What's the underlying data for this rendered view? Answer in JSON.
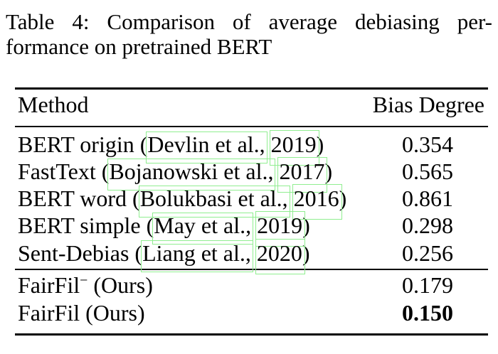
{
  "caption": {
    "line1": "Table 4:  Comparison of average debiasing per-",
    "line2": "formance on pretrained BERT"
  },
  "table": {
    "columns": [
      "Method",
      "Bias Degree"
    ],
    "groups": [
      {
        "name": "baselines",
        "rows": [
          {
            "method_parts": [
              {
                "text": "BERT origin ("
              },
              {
                "text": "Devlin et al.,",
                "box": "author"
              },
              {
                "text": " "
              },
              {
                "text": "2019",
                "box": "year"
              },
              {
                "text": ")"
              }
            ],
            "value": "0.354",
            "bold": false
          },
          {
            "method_parts": [
              {
                "text": "FastText ("
              },
              {
                "text": "Bojanowski et al.,",
                "box": "author"
              },
              {
                "text": " "
              },
              {
                "text": "2017",
                "box": "year"
              },
              {
                "text": ")"
              }
            ],
            "value": "0.565",
            "bold": false
          },
          {
            "method_parts": [
              {
                "text": "BERT word ("
              },
              {
                "text": "Bolukbasi et al.,",
                "box": "author"
              },
              {
                "text": " "
              },
              {
                "text": "2016",
                "box": "year"
              },
              {
                "text": ")"
              }
            ],
            "value": "0.861",
            "bold": false
          },
          {
            "method_parts": [
              {
                "text": "BERT simple ("
              },
              {
                "text": "May et al.,",
                "box": "author"
              },
              {
                "text": " "
              },
              {
                "text": "2019",
                "box": "year"
              },
              {
                "text": ")"
              }
            ],
            "value": "0.298",
            "bold": false
          },
          {
            "method_parts": [
              {
                "text": "Sent-Debias ("
              },
              {
                "text": "Liang et al.,",
                "box": "author"
              },
              {
                "text": " "
              },
              {
                "text": "2020",
                "box": "year"
              },
              {
                "text": ")"
              }
            ],
            "value": "0.256",
            "bold": false
          }
        ]
      },
      {
        "name": "ours",
        "rows": [
          {
            "method_parts": [
              {
                "text": "FairFil"
              },
              {
                "text": "−",
                "sup": true
              },
              {
                "text": " (Ours)"
              }
            ],
            "value": "0.179",
            "bold": false
          },
          {
            "method_parts": [
              {
                "text": "FairFil (Ours)"
              }
            ],
            "value": "0.150",
            "bold": true
          }
        ]
      }
    ]
  },
  "colors": {
    "citation_box_green": "#90ee90",
    "text": "#000000",
    "background": "#ffffff"
  }
}
